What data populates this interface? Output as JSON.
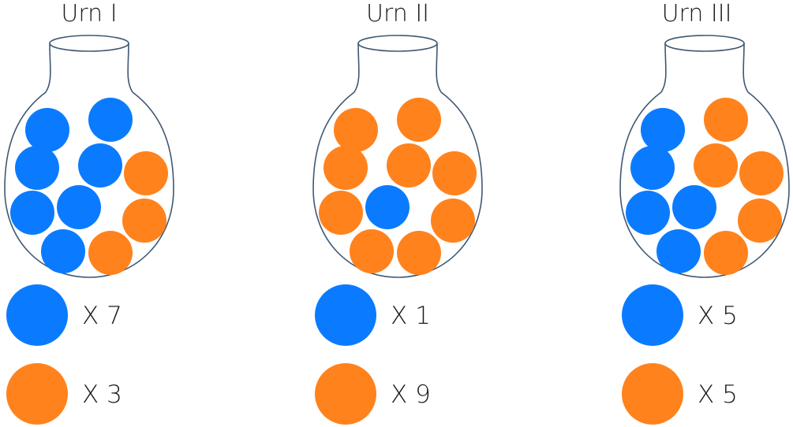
{
  "colors": {
    "blue": "#0a7bff",
    "orange": "#ff821d",
    "outline": "#3f5873"
  },
  "urns": [
    {
      "title": "Urn I",
      "balls": [
        "blue",
        "blue",
        "blue",
        "blue",
        "orange",
        "blue",
        "blue",
        "orange",
        "blue",
        "orange"
      ],
      "legend": [
        {
          "color": "blue",
          "label": "X 7",
          "count": 7
        },
        {
          "color": "orange",
          "label": "X 3",
          "count": 3
        }
      ]
    },
    {
      "title": "Urn II",
      "balls": [
        "orange",
        "orange",
        "orange",
        "orange",
        "orange",
        "orange",
        "blue",
        "orange",
        "orange",
        "orange"
      ],
      "legend": [
        {
          "color": "blue",
          "label": "X 1",
          "count": 1
        },
        {
          "color": "orange",
          "label": "X 9",
          "count": 9
        }
      ]
    },
    {
      "title": "Urn III",
      "balls": [
        "blue",
        "orange",
        "blue",
        "orange",
        "orange",
        "blue",
        "blue",
        "orange",
        "blue",
        "orange"
      ],
      "legend": [
        {
          "color": "blue",
          "label": "X 5",
          "count": 5
        },
        {
          "color": "orange",
          "label": "X 5",
          "count": 5
        }
      ]
    }
  ]
}
